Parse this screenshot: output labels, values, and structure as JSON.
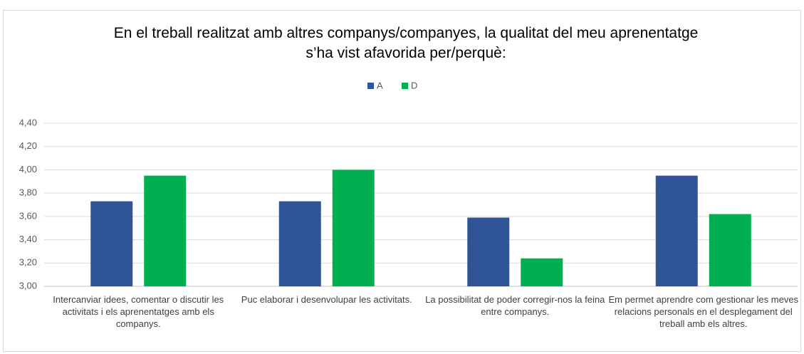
{
  "chart_data": {
    "type": "bar",
    "title": "En el treball realitzat amb altres companys/companyes,  la qualitat del meu aprenentatge s’ha vist afavorida per/perquè:",
    "categories": [
      "Intercanviar idees, comentar o discutir les activitats i els aprenentatges amb els companys.",
      "Puc elaborar i desenvolupar les activitats.",
      "La possibilitat de poder corregir-nos la feina entre companys.",
      "Em permet aprendre com gestionar les meves relacions personals en el desplegament del treball amb els altres."
    ],
    "series": [
      {
        "name": "A",
        "color": "#2f5597",
        "values": [
          3.73,
          3.73,
          3.59,
          3.95
        ]
      },
      {
        "name": "D",
        "color": "#00b050",
        "values": [
          3.95,
          4.0,
          3.24,
          3.62
        ]
      }
    ],
    "ylim": [
      3.0,
      4.4
    ],
    "yticks": [
      {
        "value": 3.0,
        "label": "3,00"
      },
      {
        "value": 3.2,
        "label": "3,20"
      },
      {
        "value": 3.4,
        "label": "3,40"
      },
      {
        "value": 3.6,
        "label": "3,60"
      },
      {
        "value": 3.8,
        "label": "3,80"
      },
      {
        "value": 4.0,
        "label": "4,00"
      },
      {
        "value": 4.2,
        "label": "4,20"
      },
      {
        "value": 4.4,
        "label": "4,40"
      }
    ],
    "grid": true,
    "legend": "top"
  }
}
